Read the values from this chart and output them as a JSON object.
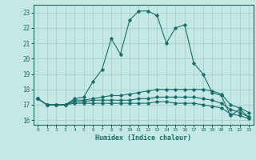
{
  "xlabel": "Humidex (Indice chaleur)",
  "bg_color": "#c5e8e5",
  "grid_color": "#a0ccca",
  "line_color": "#1a6e6a",
  "xlim": [
    -0.5,
    23.5
  ],
  "ylim": [
    15.7,
    23.5
  ],
  "yticks": [
    16,
    17,
    18,
    19,
    20,
    21,
    22,
    23
  ],
  "xticks": [
    0,
    1,
    2,
    3,
    4,
    5,
    6,
    7,
    8,
    9,
    10,
    11,
    12,
    13,
    14,
    15,
    16,
    17,
    18,
    19,
    20,
    21,
    22,
    23
  ],
  "line1_x": [
    0,
    1,
    2,
    3,
    4,
    5,
    6,
    7,
    8,
    9,
    10,
    11,
    12,
    13,
    14,
    15,
    16,
    17,
    18,
    19,
    20,
    21,
    22,
    23
  ],
  "line1_y": [
    17.4,
    17.0,
    17.0,
    17.0,
    17.4,
    17.5,
    18.5,
    19.3,
    21.3,
    20.3,
    22.5,
    23.1,
    23.1,
    22.8,
    21.0,
    22.0,
    22.2,
    19.7,
    19.0,
    17.8,
    17.6,
    16.3,
    16.7,
    16.2
  ],
  "line2_x": [
    0,
    1,
    2,
    3,
    4,
    5,
    6,
    7,
    8,
    9,
    10,
    11,
    12,
    13,
    14,
    15,
    16,
    17,
    18,
    19,
    20,
    21,
    22,
    23
  ],
  "line2_y": [
    17.4,
    17.0,
    17.0,
    17.0,
    17.3,
    17.3,
    17.4,
    17.5,
    17.6,
    17.6,
    17.7,
    17.8,
    17.9,
    18.0,
    18.0,
    18.0,
    18.0,
    18.0,
    18.0,
    17.9,
    17.7,
    17.0,
    16.8,
    16.5
  ],
  "line3_x": [
    0,
    1,
    2,
    3,
    4,
    5,
    6,
    7,
    8,
    9,
    10,
    11,
    12,
    13,
    14,
    15,
    16,
    17,
    18,
    19,
    20,
    21,
    22,
    23
  ],
  "line3_y": [
    17.4,
    17.0,
    17.0,
    17.0,
    17.2,
    17.2,
    17.3,
    17.3,
    17.3,
    17.3,
    17.3,
    17.4,
    17.4,
    17.5,
    17.5,
    17.5,
    17.5,
    17.5,
    17.4,
    17.3,
    17.1,
    16.7,
    16.5,
    16.2
  ],
  "line4_x": [
    0,
    1,
    2,
    3,
    4,
    5,
    6,
    7,
    8,
    9,
    10,
    11,
    12,
    13,
    14,
    15,
    16,
    17,
    18,
    19,
    20,
    21,
    22,
    23
  ],
  "line4_y": [
    17.4,
    17.0,
    17.0,
    17.0,
    17.1,
    17.1,
    17.1,
    17.1,
    17.1,
    17.1,
    17.1,
    17.1,
    17.1,
    17.2,
    17.2,
    17.1,
    17.1,
    17.1,
    17.0,
    16.9,
    16.8,
    16.4,
    16.3,
    16.1
  ]
}
